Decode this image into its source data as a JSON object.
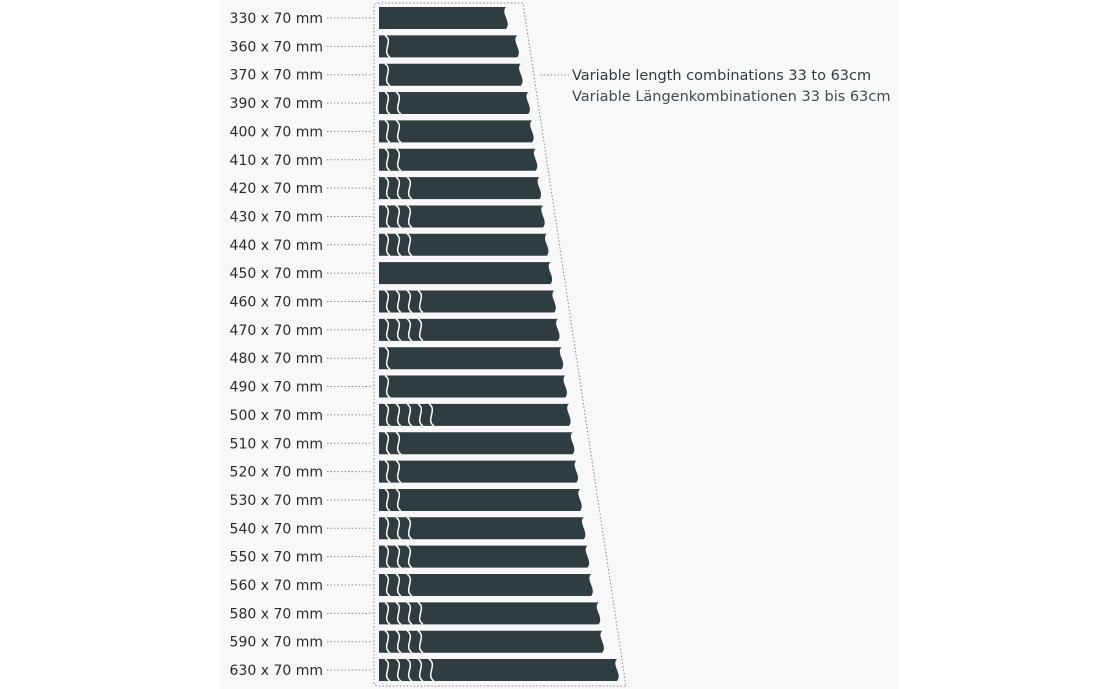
{
  "rows": [
    {
      "label": "330 x 70 mm",
      "length": 330,
      "joints": 0
    },
    {
      "label": "360 x 70 mm",
      "length": 360,
      "joints": 1
    },
    {
      "label": "370 x 70 mm",
      "length": 370,
      "joints": 1
    },
    {
      "label": "390 x 70 mm",
      "length": 390,
      "joints": 2
    },
    {
      "label": "400 x 70 mm",
      "length": 400,
      "joints": 2
    },
    {
      "label": "410 x 70 mm",
      "length": 410,
      "joints": 2
    },
    {
      "label": "420 x 70 mm",
      "length": 420,
      "joints": 3
    },
    {
      "label": "430 x 70 mm",
      "length": 430,
      "joints": 3
    },
    {
      "label": "440 x 70 mm",
      "length": 440,
      "joints": 3
    },
    {
      "label": "450 x 70 mm",
      "length": 450,
      "joints": 0
    },
    {
      "label": "460 x 70 mm",
      "length": 460,
      "joints": 4
    },
    {
      "label": "470 x 70 mm",
      "length": 470,
      "joints": 4
    },
    {
      "label": "480 x 70 mm",
      "length": 480,
      "joints": 1
    },
    {
      "label": "490 x 70 mm",
      "length": 490,
      "joints": 1
    },
    {
      "label": "500 x 70 mm",
      "length": 500,
      "joints": 5
    },
    {
      "label": "510 x 70 mm",
      "length": 510,
      "joints": 2
    },
    {
      "label": "520 x 70 mm",
      "length": 520,
      "joints": 2
    },
    {
      "label": "530 x 70 mm",
      "length": 530,
      "joints": 2
    },
    {
      "label": "540 x 70 mm",
      "length": 540,
      "joints": 3
    },
    {
      "label": "550 x 70 mm",
      "length": 550,
      "joints": 3
    },
    {
      "label": "560 x 70 mm",
      "length": 560,
      "joints": 3
    },
    {
      "label": "580 x 70 mm",
      "length": 580,
      "joints": 4
    },
    {
      "label": "590 x 70 mm",
      "length": 590,
      "joints": 4
    },
    {
      "label": "630 x 70 mm",
      "length": 630,
      "joints": 5
    }
  ],
  "caption": {
    "en": "Variable length combinations 33 to 63cm",
    "de": "Variable Längenkombinationen 33 bis 63cm"
  },
  "colors": {
    "bar": "#2f3d40",
    "joint": "#ffffff",
    "leader": "#8a8a8a",
    "text": "#2b2b2b"
  }
}
